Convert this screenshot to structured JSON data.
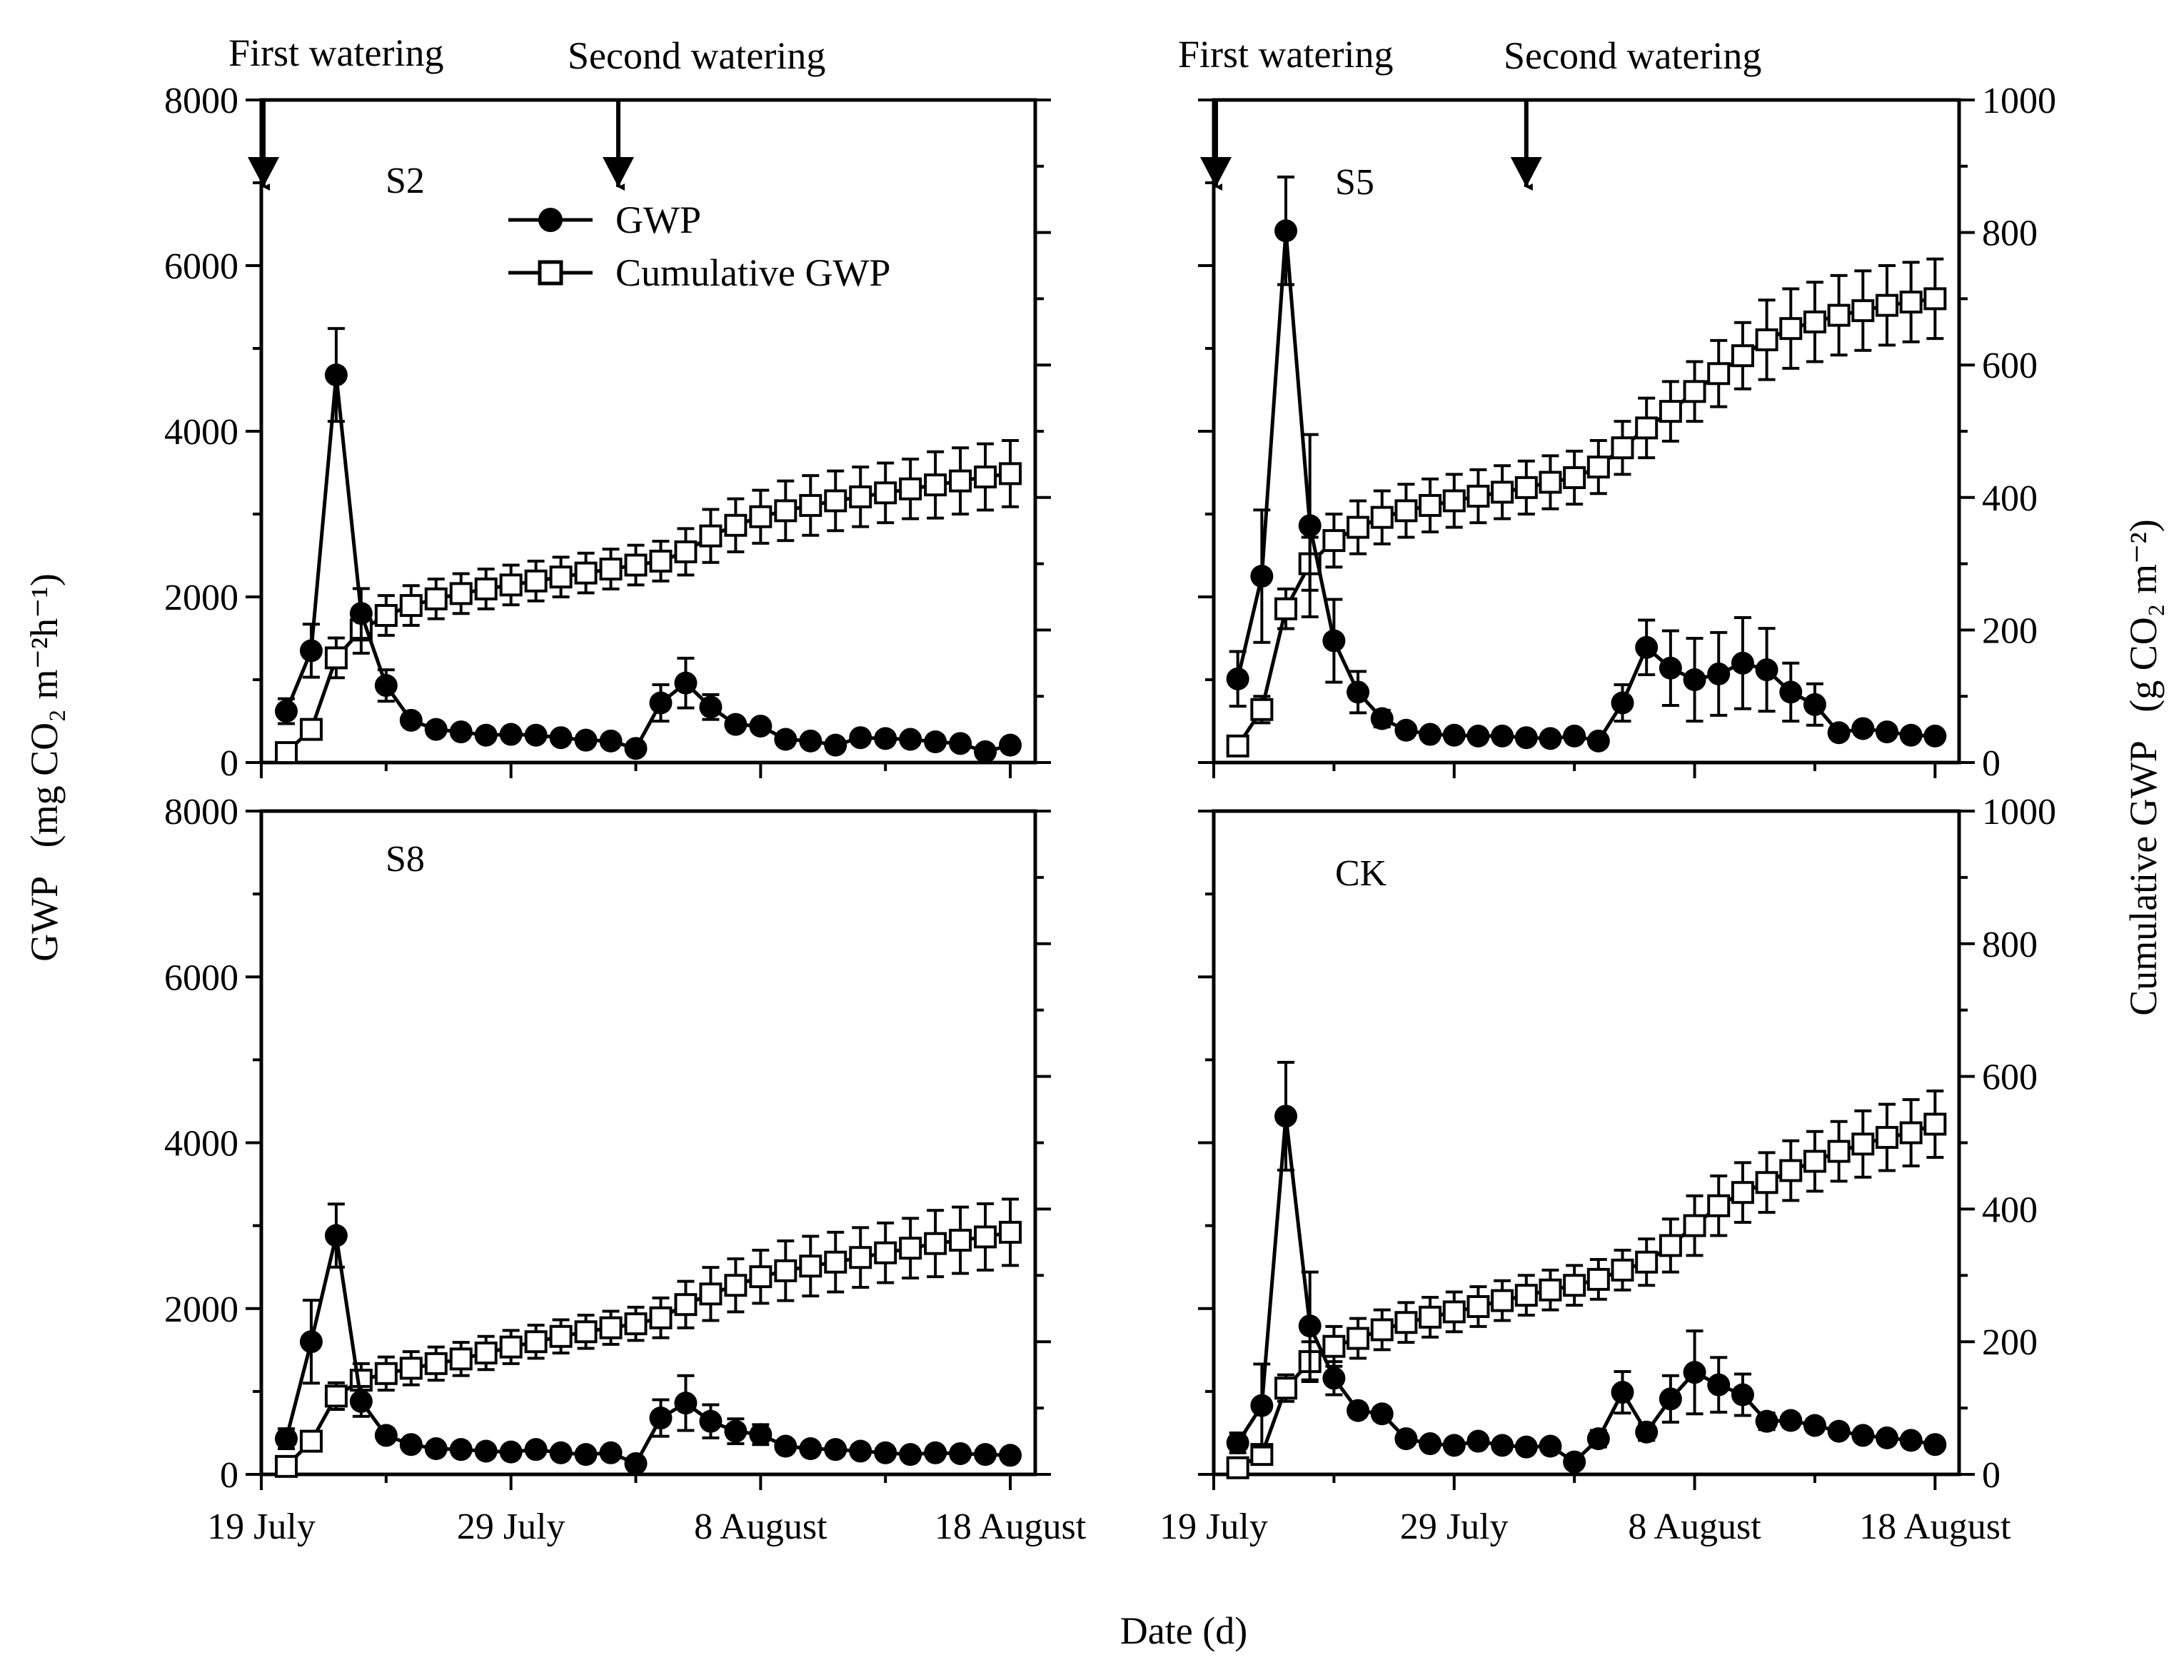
{
  "figure": {
    "left_axis_title": "GWP",
    "left_axis_unit": "(mg CO₂ m⁻²h⁻¹)",
    "right_axis_title": "Cumulative GWP",
    "right_axis_unit": "(g CO₂ m⁻²)",
    "x_axis_title": "Date (d)",
    "legend": {
      "gwp": "GWP",
      "cumulative": "Cumulative GWP"
    },
    "annotations": {
      "first": "First watering",
      "second": "Second watering"
    }
  },
  "chart_data": [
    {
      "panel": "S2",
      "type": "line",
      "x_ticks": [
        "19 July",
        "29 July",
        "8 August",
        "18 August"
      ],
      "ylim_left": [
        0,
        8000
      ],
      "ylim_right": [
        0,
        1000
      ],
      "y_ticks_left": [
        "0",
        "2000",
        "4000",
        "6000",
        "8000"
      ],
      "y_ticks_right": [],
      "watering_days": [
        0,
        14.3
      ],
      "series": [
        {
          "name": "GWP",
          "x": [
            1,
            2,
            3,
            4,
            5,
            6,
            7,
            8,
            9,
            10,
            11,
            12,
            13,
            14,
            15,
            16,
            17,
            18,
            19,
            20,
            21,
            22,
            23,
            24,
            25,
            26,
            27,
            28,
            29,
            30
          ],
          "values": [
            620,
            1350,
            4680,
            1800,
            930,
            510,
            400,
            370,
            330,
            340,
            330,
            300,
            270,
            260,
            170,
            720,
            960,
            670,
            460,
            440,
            280,
            260,
            210,
            300,
            290,
            280,
            250,
            230,
            130,
            210
          ],
          "err": [
            150,
            320,
            560,
            300,
            190,
            60,
            50,
            50,
            40,
            40,
            40,
            30,
            30,
            40,
            40,
            220,
            300,
            150,
            70,
            60,
            40,
            30,
            30,
            40,
            40,
            40,
            30,
            30,
            30,
            30
          ]
        },
        {
          "name": "Cumulative GWP",
          "x": [
            1,
            2,
            3,
            4,
            5,
            6,
            7,
            8,
            9,
            10,
            11,
            12,
            13,
            14,
            15,
            16,
            17,
            18,
            19,
            20,
            21,
            22,
            23,
            24,
            25,
            26,
            27,
            28,
            29,
            30
          ],
          "values": [
            15,
            50,
            158,
            200,
            222,
            237,
            247,
            255,
            262,
            268,
            274,
            280,
            286,
            292,
            298,
            304,
            318,
            342,
            358,
            371,
            380,
            388,
            395,
            401,
            407,
            413,
            419,
            425,
            431,
            436
          ],
          "err": [
            5,
            10,
            30,
            35,
            30,
            30,
            30,
            30,
            30,
            30,
            30,
            30,
            30,
            30,
            30,
            30,
            35,
            40,
            40,
            40,
            45,
            45,
            45,
            45,
            45,
            45,
            50,
            50,
            50,
            50
          ]
        }
      ]
    },
    {
      "panel": "S5",
      "type": "line",
      "x_ticks": [
        "19 July",
        "29 July",
        "8 August",
        "18 August"
      ],
      "ylim_left": [
        0,
        8000
      ],
      "ylim_right": [
        0,
        1000
      ],
      "y_ticks_left": [],
      "y_ticks_right": [
        "0",
        "200",
        "400",
        "600",
        "800",
        "1000"
      ],
      "watering_days": [
        0,
        13
      ],
      "series": [
        {
          "name": "GWP",
          "x": [
            1,
            2,
            3,
            4,
            5,
            6,
            7,
            8,
            9,
            10,
            11,
            12,
            13,
            14,
            15,
            16,
            17,
            18,
            19,
            20,
            21,
            22,
            23,
            24,
            25,
            26,
            27,
            28,
            29,
            30
          ],
          "values": [
            1010,
            2250,
            6420,
            2860,
            1470,
            850,
            530,
            390,
            340,
            330,
            320,
            320,
            300,
            290,
            320,
            260,
            720,
            1390,
            1140,
            1000,
            1070,
            1200,
            1120,
            850,
            700,
            360,
            410,
            370,
            330,
            320
          ],
          "err": [
            330,
            800,
            650,
            1100,
            500,
            250,
            100,
            60,
            60,
            60,
            50,
            50,
            50,
            50,
            50,
            40,
            220,
            330,
            450,
            500,
            500,
            550,
            500,
            350,
            250,
            60,
            60,
            60,
            50,
            50
          ]
        },
        {
          "name": "Cumulative GWP",
          "x": [
            1,
            2,
            3,
            4,
            5,
            6,
            7,
            8,
            9,
            10,
            11,
            12,
            13,
            14,
            15,
            16,
            17,
            18,
            19,
            20,
            21,
            22,
            23,
            24,
            25,
            26,
            27,
            28,
            29,
            30
          ],
          "values": [
            25,
            80,
            232,
            300,
            335,
            355,
            370,
            380,
            388,
            395,
            402,
            408,
            415,
            423,
            430,
            446,
            475,
            505,
            530,
            560,
            587,
            614,
            638,
            655,
            665,
            675,
            682,
            690,
            695,
            700
          ],
          "err": [
            10,
            20,
            30,
            40,
            40,
            40,
            40,
            40,
            40,
            40,
            40,
            40,
            40,
            40,
            40,
            40,
            40,
            45,
            45,
            45,
            50,
            50,
            60,
            60,
            60,
            60,
            60,
            60,
            60,
            60
          ]
        }
      ]
    },
    {
      "panel": "S8",
      "type": "line",
      "x_ticks": [
        "19 July",
        "29 July",
        "8 August",
        "18 August"
      ],
      "ylim_left": [
        0,
        8000
      ],
      "ylim_right": [
        0,
        1000
      ],
      "y_ticks_left": [
        "0",
        "2000",
        "4000",
        "6000",
        "8000"
      ],
      "y_ticks_right": [],
      "watering_days": [],
      "series": [
        {
          "name": "GWP",
          "x": [
            1,
            2,
            3,
            4,
            5,
            6,
            7,
            8,
            9,
            10,
            11,
            12,
            13,
            14,
            15,
            16,
            17,
            18,
            19,
            20,
            21,
            22,
            23,
            24,
            25,
            26,
            27,
            28,
            29,
            30
          ],
          "values": [
            430,
            1600,
            2880,
            880,
            470,
            360,
            310,
            300,
            280,
            270,
            300,
            260,
            240,
            260,
            130,
            680,
            860,
            640,
            520,
            480,
            340,
            310,
            300,
            280,
            260,
            240,
            260,
            250,
            240,
            230
          ],
          "err": [
            120,
            500,
            380,
            180,
            70,
            50,
            40,
            40,
            40,
            40,
            40,
            30,
            30,
            40,
            40,
            220,
            330,
            200,
            150,
            120,
            40,
            40,
            40,
            40,
            40,
            40,
            40,
            40,
            40,
            40
          ]
        },
        {
          "name": "Cumulative GWP",
          "x": [
            1,
            2,
            3,
            4,
            5,
            6,
            7,
            8,
            9,
            10,
            11,
            12,
            13,
            14,
            15,
            16,
            17,
            18,
            19,
            20,
            21,
            22,
            23,
            24,
            25,
            26,
            27,
            28,
            29,
            30
          ],
          "values": [
            12,
            50,
            118,
            142,
            152,
            160,
            167,
            174,
            183,
            192,
            200,
            208,
            215,
            221,
            227,
            236,
            256,
            272,
            285,
            298,
            307,
            314,
            320,
            327,
            334,
            341,
            348,
            353,
            358,
            365
          ],
          "err": [
            3,
            10,
            20,
            25,
            25,
            25,
            25,
            25,
            25,
            25,
            25,
            25,
            25,
            25,
            25,
            30,
            35,
            40,
            40,
            40,
            45,
            45,
            45,
            45,
            45,
            45,
            50,
            50,
            50,
            50
          ]
        }
      ]
    },
    {
      "panel": "CK",
      "type": "line",
      "x_ticks": [
        "19 July",
        "29 July",
        "8 August",
        "18 August"
      ],
      "ylim_left": [
        0,
        8000
      ],
      "ylim_right": [
        0,
        1000
      ],
      "y_ticks_left": [],
      "y_ticks_right": [
        "0",
        "200",
        "400",
        "600",
        "800",
        "1000"
      ],
      "watering_days": [],
      "series": [
        {
          "name": "GWP",
          "x": [
            1,
            2,
            3,
            4,
            5,
            6,
            7,
            8,
            9,
            10,
            11,
            12,
            13,
            14,
            15,
            16,
            17,
            18,
            19,
            20,
            21,
            22,
            23,
            24,
            25,
            26,
            27,
            28,
            29,
            30
          ],
          "values": [
            380,
            830,
            4320,
            1790,
            1160,
            770,
            730,
            430,
            370,
            350,
            400,
            350,
            330,
            340,
            150,
            430,
            990,
            510,
            910,
            1230,
            1080,
            960,
            640,
            650,
            590,
            520,
            470,
            440,
            410,
            360
          ],
          "err": [
            120,
            500,
            650,
            650,
            200,
            80,
            80,
            60,
            50,
            50,
            50,
            50,
            50,
            50,
            40,
            100,
            250,
            100,
            280,
            500,
            330,
            250,
            100,
            80,
            80,
            60,
            60,
            60,
            50,
            50
          ]
        },
        {
          "name": "Cumulative GWP",
          "x": [
            1,
            2,
            3,
            4,
            5,
            6,
            7,
            8,
            9,
            10,
            11,
            12,
            13,
            14,
            15,
            16,
            17,
            18,
            19,
            20,
            21,
            22,
            23,
            24,
            25,
            26,
            27,
            28,
            29,
            30
          ],
          "values": [
            10,
            30,
            130,
            170,
            193,
            205,
            218,
            229,
            237,
            245,
            253,
            262,
            270,
            278,
            285,
            294,
            308,
            320,
            345,
            375,
            405,
            425,
            440,
            458,
            472,
            487,
            498,
            508,
            515,
            528
          ],
          "err": [
            3,
            10,
            20,
            30,
            30,
            30,
            30,
            30,
            30,
            30,
            30,
            30,
            30,
            30,
            30,
            30,
            30,
            35,
            40,
            45,
            45,
            45,
            45,
            45,
            45,
            45,
            50,
            50,
            50,
            50
          ]
        }
      ]
    }
  ]
}
